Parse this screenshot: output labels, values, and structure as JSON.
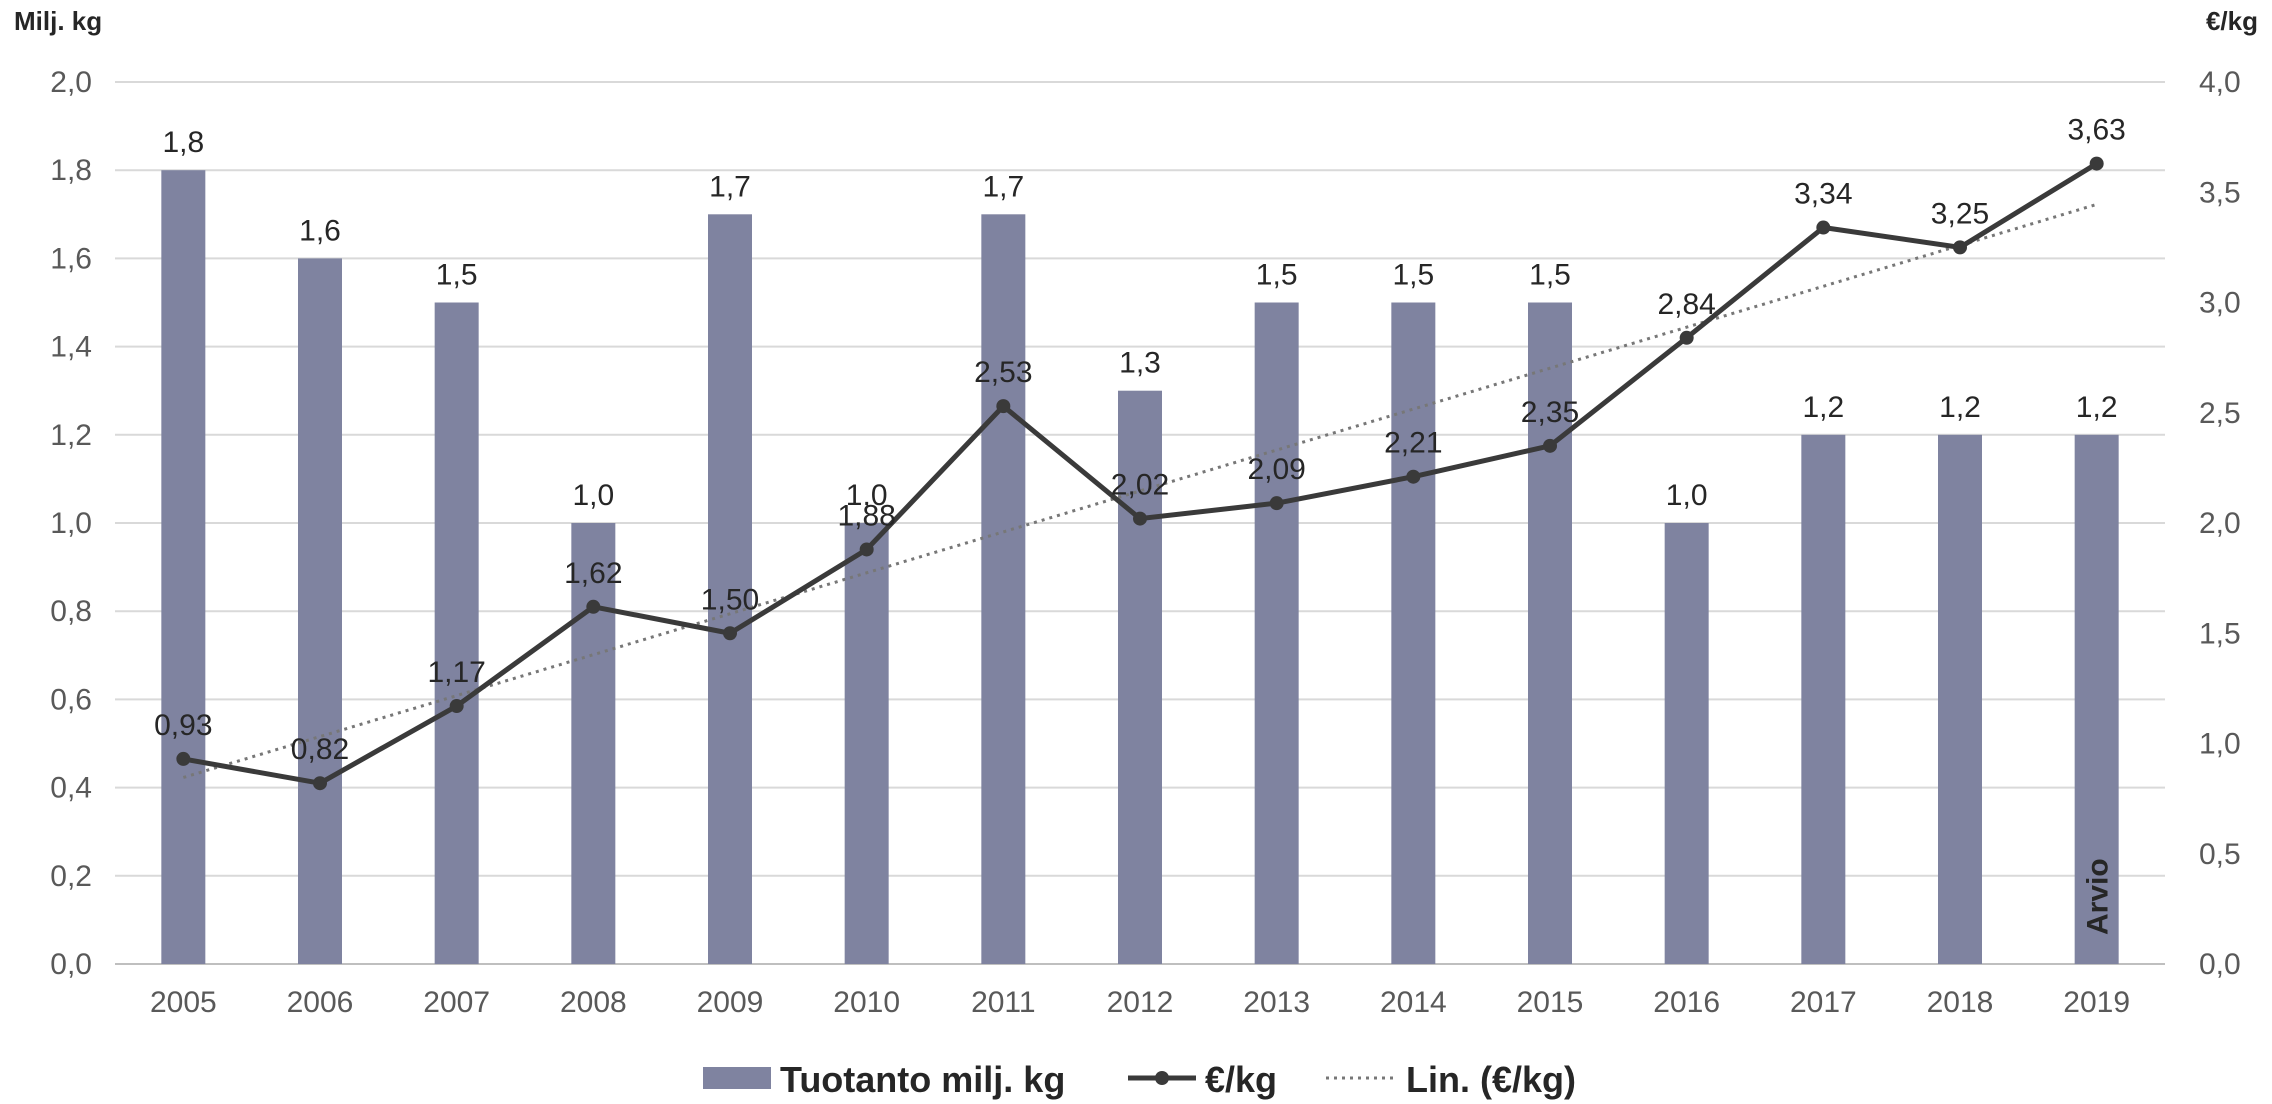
{
  "chart_data": {
    "type": "bar",
    "categories": [
      "2005",
      "2006",
      "2007",
      "2008",
      "2009",
      "2010",
      "2011",
      "2012",
      "2013",
      "2014",
      "2015",
      "2016",
      "2017",
      "2018",
      "2019"
    ],
    "series": [
      {
        "name": "Tuotanto milj. kg",
        "type": "bar",
        "axis": "left",
        "values": [
          1.8,
          1.6,
          1.5,
          1.0,
          1.7,
          1.0,
          1.7,
          1.3,
          1.5,
          1.5,
          1.5,
          1.0,
          1.2,
          1.2,
          1.2
        ],
        "labels": [
          "1,8",
          "1,6",
          "1,5",
          "1,0",
          "1,7",
          "1,0",
          "1,7",
          "1,3",
          "1,5",
          "1,5",
          "1,5",
          "1,0",
          "1,2",
          "1,2",
          "1,2"
        ],
        "color": "#7f83a0"
      },
      {
        "name": "€/kg",
        "type": "line",
        "axis": "right",
        "values": [
          0.93,
          0.82,
          1.17,
          1.62,
          1.5,
          1.88,
          2.53,
          2.02,
          2.09,
          2.21,
          2.35,
          2.84,
          3.34,
          3.25,
          3.63
        ],
        "labels": [
          "0,93",
          "0,82",
          "1,17",
          "1,62",
          "1,50",
          "1,88",
          "2,53",
          "2,02",
          "2,09",
          "2,21",
          "2,35",
          "2,84",
          "3,34",
          "3,25",
          "3,63"
        ],
        "color": "#3a3a3a"
      },
      {
        "name": "Lin. (€/kg)",
        "type": "trendline",
        "axis": "right",
        "color": "#777777"
      }
    ],
    "y_left": {
      "label": "Milj. kg",
      "ylim": [
        0,
        2.0
      ],
      "ticks": [
        "0,0",
        "0,2",
        "0,4",
        "0,6",
        "0,8",
        "1,0",
        "1,2",
        "1,4",
        "1,6",
        "1,8",
        "2,0"
      ]
    },
    "y_right": {
      "label": "€/kg",
      "ylim": [
        0,
        4.0
      ],
      "ticks": [
        "0,0",
        "0,5",
        "1,0",
        "1,5",
        "2,0",
        "2,5",
        "3,0",
        "3,5",
        "4,0"
      ]
    },
    "annotation": "Arvio",
    "grid": true,
    "legend_position": "bottom-center"
  }
}
